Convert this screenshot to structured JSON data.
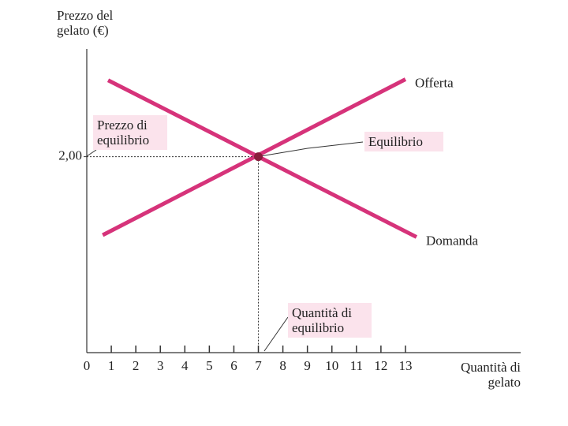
{
  "chart_data": {
    "type": "line",
    "y_label": "Prezzo del gelato (€)",
    "x_label": "Quantità di gelato",
    "xlim": [
      0,
      17.7
    ],
    "ylim": [
      0,
      3.1
    ],
    "xticks": [
      0,
      1,
      2,
      3,
      4,
      5,
      6,
      7,
      8,
      9,
      10,
      11,
      12,
      13
    ],
    "yticks": [
      {
        "value": 2,
        "label": "2,00"
      }
    ],
    "grid": false,
    "series": [
      {
        "name": "Offerta",
        "color": "#d6337a",
        "x": [
          0.65,
          13.0
        ],
        "values": [
          1.2,
          2.79
        ]
      },
      {
        "name": "Domanda",
        "color": "#d6337a",
        "x": [
          0.87,
          13.45
        ],
        "values": [
          2.78,
          1.18
        ]
      }
    ],
    "equilibrium": {
      "x": 7,
      "y": 2,
      "label": "Equilibrio",
      "color": "#8a1c3c"
    },
    "annotations": [
      {
        "text": "Prezzo di equilibrio"
      },
      {
        "text": "Quantità di equilibrio"
      }
    ]
  }
}
